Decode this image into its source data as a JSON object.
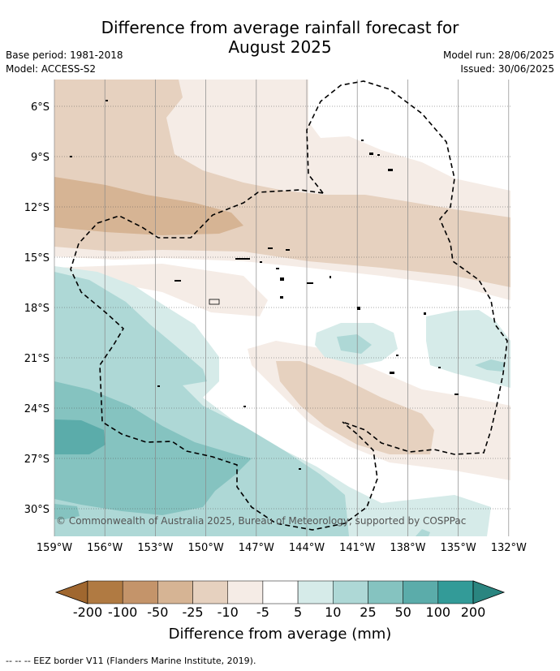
{
  "title_line1": "Difference from average rainfall forecast for",
  "title_line2": "August 2025",
  "base_period": "Base period: 1981-2018",
  "model": "Model: ACCESS-S2",
  "model_run": "Model run: 28/06/2025",
  "issued": "Issued: 30/06/2025",
  "copyright": "© Commonwealth of Australia 2025, Bureau of Meteorology, supported by COSPPac",
  "lat_labels": [
    "6°S",
    "9°S",
    "12°S",
    "15°S",
    "18°S",
    "21°S",
    "24°S",
    "27°S",
    "30°S"
  ],
  "lon_labels": [
    "159°W",
    "156°W",
    "153°W",
    "150°W",
    "147°W",
    "144°W",
    "141°W",
    "138°W",
    "135°W",
    "132°W"
  ],
  "colorbar": {
    "ticks": [
      "-200",
      "-100",
      "-50",
      "-25",
      "-10",
      "-5",
      "5",
      "10",
      "25",
      "50",
      "100",
      "200"
    ],
    "colors": [
      "#a0672f",
      "#b07a42",
      "#c4946a",
      "#d6b494",
      "#e6d1bf",
      "#f5ece6",
      "#ffffff",
      "#d6ebe9",
      "#aed8d6",
      "#85c3c0",
      "#5bacaa",
      "#339b98",
      "#2a8580"
    ],
    "label": "Difference from average (mm)"
  },
  "legend_footer": "--  --  -- EEZ border V11 (Flanders Marine Institute, 2019)."
}
